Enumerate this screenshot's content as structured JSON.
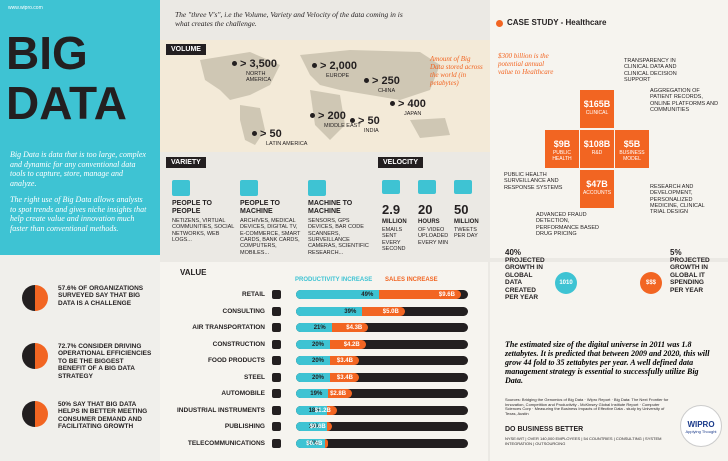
{
  "header": {
    "url": "www.wipro.com",
    "title_line1": "BIG",
    "title_line2": "DATA",
    "intro": "Big Data is data that is too large, complex and dynamic for any conventional data tools to capture, store, manage and analyze.",
    "intro2": "The right use of Big Data allows analysts to spot trends and gives niche insights that help create value and innovation much faster than conventional methods.",
    "tagline": "The \"three V's\", i.e the Volume, Variety and Velocity of the data coming in is what creates the challenge."
  },
  "volume": {
    "title": "VOLUME",
    "note": "Amount of Big Data stored across the world (in petabytes)",
    "regions": [
      {
        "value": "> 3,500",
        "label": "NORTH AMERICA"
      },
      {
        "value": "> 2,000",
        "label": "EUROPE"
      },
      {
        "value": "> 250",
        "label": "CHINA"
      },
      {
        "value": "> 400",
        "label": "JAPAN"
      },
      {
        "value": "> 200",
        "label": "MIDDLE EAST"
      },
      {
        "value": "> 50",
        "label": "INDIA"
      },
      {
        "value": "> 50",
        "label": "LATIN AMERICA"
      }
    ]
  },
  "variety": {
    "title": "VARIETY",
    "items": [
      {
        "title": "PEOPLE TO PEOPLE",
        "text": "NETIZENS, VIRTUAL COMMUNITIES, SOCIAL NETWORKS, WEB LOGS..."
      },
      {
        "title": "PEOPLE TO MACHINE",
        "text": "ARCHIVES, MEDICAL DEVICES, DIGITAL TV, E-COMMERCE, SMART CARDS, BANK CARDS, COMPUTERS, MOBILES..."
      },
      {
        "title": "MACHINE TO MACHINE",
        "text": "SENSORS, GPS DEVICES, BAR CODE SCANNERS, SURVEILLANCE CAMERAS, SCIENTIFIC RESEARCH..."
      }
    ]
  },
  "velocity": {
    "title": "VELOCITY",
    "items": [
      {
        "value": "2.9",
        "unit": "MILLION",
        "text": "EMAILS SENT EVERY SECOND"
      },
      {
        "value": "20",
        "unit": "HOURS",
        "text": "OF VIDEO UPLOADED EVERY MIN"
      },
      {
        "value": "50",
        "unit": "MILLION",
        "text": "TWEETS PER DAY"
      }
    ]
  },
  "case_study": {
    "title": "CASE STUDY - Healthcare",
    "note": "$300 billion is the potential annual value to Healthcare",
    "blocks": [
      {
        "value": "$165B",
        "label": "CLINICAL"
      },
      {
        "value": "$9B",
        "label": "PUBLIC HEALTH"
      },
      {
        "value": "$108B",
        "label": "R&D"
      },
      {
        "value": "$5B",
        "label": "BUSINESS MODEL"
      },
      {
        "value": "$47B",
        "label": "ACCOUNTS"
      }
    ],
    "annotations": [
      "TRANSPARENCY IN CLINICAL DATA AND CLINICAL DECISION SUPPORT",
      "AGGREGATION OF PATIENT RECORDS, ONLINE PLATFORMS AND COMMUNITIES",
      "PUBLIC HEALTH SURVEILLANCE AND RESPONSE SYSTEMS",
      "RESEARCH AND DEVELOPMENT, PERSONALIZED MEDICINE, CLINICAL TRIAL DESIGN",
      "ADVANCED FRAUD DETECTION, PERFORMANCE BASED DRUG PRICING"
    ]
  },
  "stats": [
    "57.6% OF ORGANIZATIONS SURVEYED SAY THAT BIG DATA IS A CHALLENGE",
    "72.7% CONSIDER DRIVING OPERATIONAL EFFICIENCIES TO BE THE BIGGEST BENEFIT OF A BIG DATA STRATEGY",
    "50% SAY THAT BIG DATA HELPS IN BETTER MEETING CONSUMER DEMAND AND FACILITATING GROWTH"
  ],
  "value": {
    "title": "VALUE",
    "legend_productivity": "PRODUCTIVITY INCREASE",
    "legend_sales": "SALES INCREASE",
    "rows": [
      {
        "label": "RETAIL",
        "productivity": 49,
        "productivity_label": "49%",
        "sales": 9.6,
        "sales_label": "$9.6B"
      },
      {
        "label": "CONSULTING",
        "productivity": 39,
        "productivity_label": "39%",
        "sales": 5.0,
        "sales_label": "$5.0B"
      },
      {
        "label": "AIR TRANSPORTATION",
        "productivity": 21,
        "productivity_label": "21%",
        "sales": 4.3,
        "sales_label": "$4.3B"
      },
      {
        "label": "CONSTRUCTION",
        "productivity": 20,
        "productivity_label": "20%",
        "sales": 4.2,
        "sales_label": "$4.2B"
      },
      {
        "label": "FOOD PRODUCTS",
        "productivity": 20,
        "productivity_label": "20%",
        "sales": 3.4,
        "sales_label": "$3.4B"
      },
      {
        "label": "STEEL",
        "productivity": 20,
        "productivity_label": "20%",
        "sales": 3.4,
        "sales_label": "$3.4B"
      },
      {
        "label": "AUTOMOBILE",
        "productivity": 19,
        "productivity_label": "19%",
        "sales": 2.8,
        "sales_label": "$2.8B"
      },
      {
        "label": "INDUSTRIAL INSTRUMENTS",
        "productivity": 18,
        "productivity_label": "18%",
        "sales": 1.2,
        "sales_label": "$1.2B"
      },
      {
        "label": "PUBLISHING",
        "productivity": 18,
        "productivity_label": "18%",
        "sales": 0.6,
        "sales_label": "$0.6B"
      },
      {
        "label": "TELECOMMUNICATIONS",
        "productivity": 17,
        "productivity_label": "17%",
        "sales": 0.4,
        "sales_label": "$0.4B"
      }
    ]
  },
  "growth": [
    {
      "value": "40%",
      "text": "PROJECTED GROWTH IN GLOBAL DATA CREATED PER YEAR",
      "icon": "1010"
    },
    {
      "value": "5%",
      "text": "PROJECTED GROWTH IN GLOBAL IT SPENDING PER YEAR",
      "icon": "$$$"
    }
  ],
  "conclusion": "The estimated size of the digital universe in 2011 was 1.8 zettabytes. It is predicted that between 2009 and 2020, this will grow 44 fold to 35 zettabytes per year. A well defined data management strategy is essential to successfully utilize Big Data.",
  "sources": "Sources: Bridging the Genomics of Big Data · Wipro Report · Big Data: The Next Frontier for Innovation, Competition and Productivity - McKinsey Global Institute Report · Computer Sciences Corp · Measuring the Business Impacts of Effective Data - study by University of Texas, Austin",
  "footer": {
    "slogan": "DO BUSINESS BETTER",
    "line": "NYSE:WIT | OVER 140,000 EMPLOYEES | 54 COUNTRIES | CONSULTING | SYSTEM INTEGRATION | OUTSOURCING",
    "logo": "WIPRO",
    "logo_tag": "Applying Thought"
  }
}
